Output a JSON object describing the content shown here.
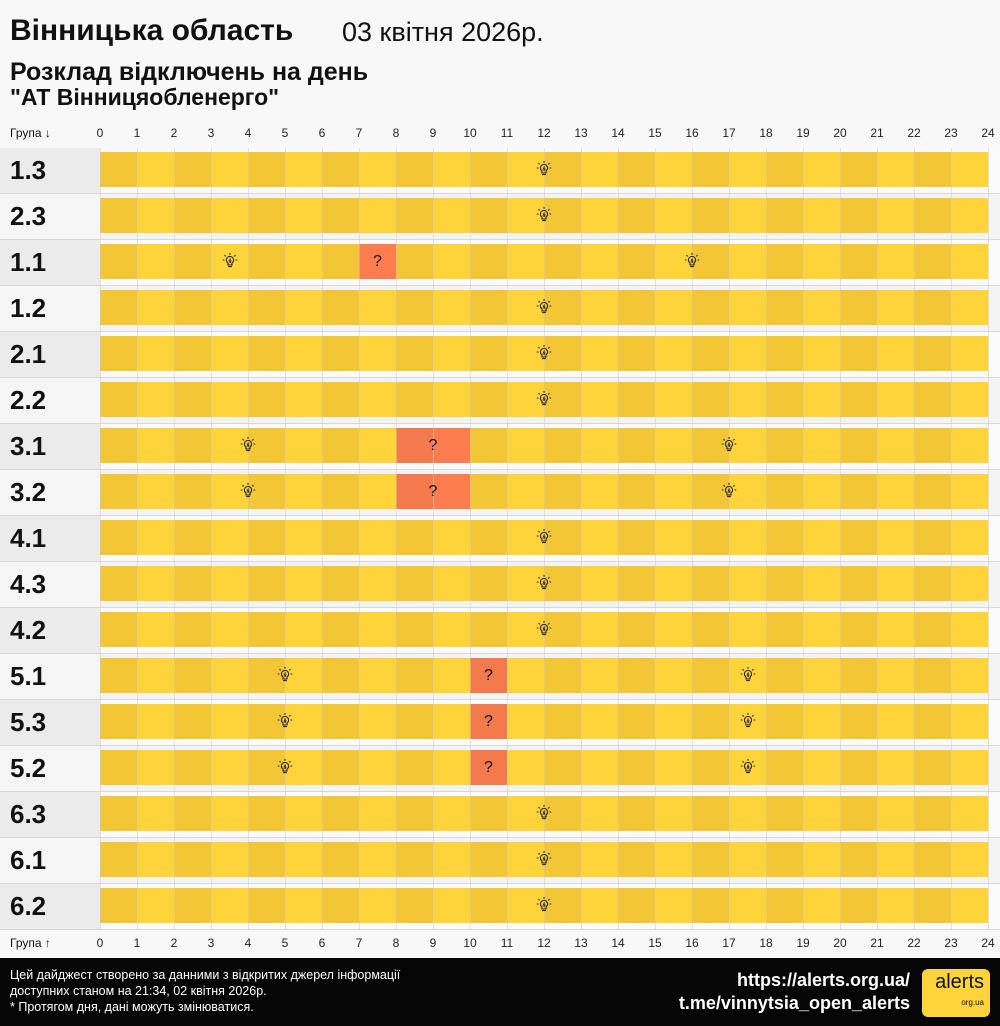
{
  "header": {
    "region": "Вінницька область",
    "date": "03 квітня 2026р.",
    "title": "Розклад відключень на день",
    "company": "\"АТ Вінницяобленерго\""
  },
  "axis": {
    "top_label": "Група ↓",
    "bottom_label": "Група ↑",
    "ticks": [
      "0",
      "1",
      "2",
      "3",
      "4",
      "5",
      "6",
      "7",
      "8",
      "9",
      "10",
      "11",
      "12",
      "13",
      "14",
      "15",
      "16",
      "17",
      "18",
      "19",
      "20",
      "21",
      "22",
      "23",
      "24"
    ]
  },
  "colors": {
    "on_dark": "#f2c635",
    "on_light": "#ffd43a",
    "maybe_dark": "#f27a4c",
    "maybe_light": "#fe7d4e"
  },
  "legend_marks": {
    "bulb": "lightbulb-icon (power on)",
    "question": "?"
  },
  "groups": [
    {
      "name": "1.3",
      "maybe": [],
      "bulbs": [
        12
      ]
    },
    {
      "name": "2.3",
      "maybe": [],
      "bulbs": [
        12
      ]
    },
    {
      "name": "1.1",
      "maybe": [
        [
          7,
          8
        ]
      ],
      "bulbs": [
        3.5,
        16
      ]
    },
    {
      "name": "1.2",
      "maybe": [],
      "bulbs": [
        12
      ]
    },
    {
      "name": "2.1",
      "maybe": [],
      "bulbs": [
        12
      ]
    },
    {
      "name": "2.2",
      "maybe": [],
      "bulbs": [
        12
      ]
    },
    {
      "name": "3.1",
      "maybe": [
        [
          8,
          10
        ]
      ],
      "bulbs": [
        4,
        17
      ]
    },
    {
      "name": "3.2",
      "maybe": [
        [
          8,
          10
        ]
      ],
      "bulbs": [
        4,
        17
      ]
    },
    {
      "name": "4.1",
      "maybe": [],
      "bulbs": [
        12
      ]
    },
    {
      "name": "4.3",
      "maybe": [],
      "bulbs": [
        12
      ]
    },
    {
      "name": "4.2",
      "maybe": [],
      "bulbs": [
        12
      ]
    },
    {
      "name": "5.1",
      "maybe": [
        [
          10,
          11
        ]
      ],
      "bulbs": [
        5,
        17.5
      ]
    },
    {
      "name": "5.3",
      "maybe": [
        [
          10,
          11
        ]
      ],
      "bulbs": [
        5,
        17.5
      ]
    },
    {
      "name": "5.2",
      "maybe": [
        [
          10,
          11
        ]
      ],
      "bulbs": [
        5,
        17.5
      ]
    },
    {
      "name": "6.3",
      "maybe": [],
      "bulbs": [
        12
      ]
    },
    {
      "name": "6.1",
      "maybe": [],
      "bulbs": [
        12
      ]
    },
    {
      "name": "6.2",
      "maybe": [],
      "bulbs": [
        12
      ]
    }
  ],
  "footer": {
    "note1": "Цей дайджест створено за данними з відкритих джерел інформації",
    "note2": "доступних станом на 21:34, 02 квітня 2026р.",
    "note3": "* Протягом дня, дані можуть змінюватися.",
    "link1": "https://alerts.org.ua/",
    "link2": "t.me/vinnytsia_open_alerts",
    "logo_text": "alerts",
    "logo_sub": "org.ua"
  }
}
